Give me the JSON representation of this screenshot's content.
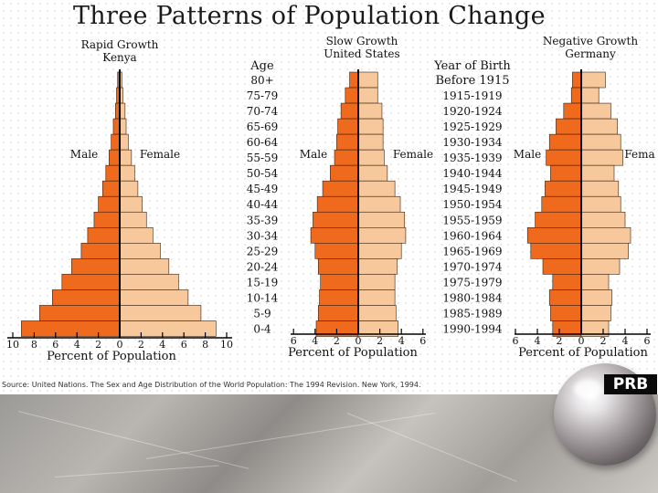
{
  "title": "Three Patterns of Population Change",
  "age_axis_label": "Age",
  "age_groups": [
    "80+",
    "75-79",
    "70-74",
    "65-69",
    "60-64",
    "55-59",
    "50-54",
    "45-49",
    "40-44",
    "35-39",
    "30-34",
    "25-29",
    "20-24",
    "15-19",
    "10-14",
    "5-9",
    "0-4"
  ],
  "birth_year_label_lines": [
    "Year of Birth",
    "Before 1915"
  ],
  "birth_years": [
    "1915-1919",
    "1920-1924",
    "1925-1929",
    "1930-1934",
    "1935-1939",
    "1940-1944",
    "1945-1949",
    "1950-1954",
    "1955-1959",
    "1960-1964",
    "1965-1969",
    "1970-1974",
    "1975-1979",
    "1980-1984",
    "1985-1989",
    "1990-1994"
  ],
  "source": "Source: United Nations. The Sex and Age Distribution of the World Population: The 1994 Revision. New York, 1994.",
  "logo_text": "PRB",
  "colors": {
    "male": "#ef6a1d",
    "female": "#f6c89c",
    "outline": "#3a2010",
    "axis": "#000000"
  },
  "chart_data": [
    {
      "type": "bar",
      "orientation": "horizontal-pyramid",
      "pattern": "Rapid Growth",
      "country": "Kenya",
      "categories": [
        "80+",
        "75-79",
        "70-74",
        "65-69",
        "60-64",
        "55-59",
        "50-54",
        "45-49",
        "40-44",
        "35-39",
        "30-34",
        "25-29",
        "20-24",
        "15-19",
        "10-14",
        "5-9",
        "0-4"
      ],
      "series": [
        {
          "name": "Male",
          "values": [
            0.2,
            0.3,
            0.4,
            0.6,
            0.8,
            1.0,
            1.3,
            1.6,
            2.0,
            2.4,
            3.0,
            3.6,
            4.5,
            5.4,
            6.3,
            7.5,
            9.2
          ]
        },
        {
          "name": "Female",
          "values": [
            0.2,
            0.3,
            0.5,
            0.6,
            0.8,
            1.1,
            1.4,
            1.7,
            2.1,
            2.5,
            3.1,
            3.8,
            4.6,
            5.5,
            6.4,
            7.6,
            9.0
          ]
        }
      ],
      "male_label": "Male",
      "female_label": "Female",
      "xlabel": "Percent of Population",
      "xticks": [
        "10",
        "8",
        "6",
        "4",
        "2",
        "0",
        "2",
        "4",
        "6",
        "8",
        "10"
      ],
      "xlim": [
        -10,
        10
      ]
    },
    {
      "type": "bar",
      "orientation": "horizontal-pyramid",
      "pattern": "Slow Growth",
      "country": "United States",
      "categories": [
        "80+",
        "75-79",
        "70-74",
        "65-69",
        "60-64",
        "55-59",
        "50-54",
        "45-49",
        "40-44",
        "35-39",
        "30-34",
        "25-29",
        "20-24",
        "15-19",
        "10-14",
        "5-9",
        "0-4"
      ],
      "series": [
        {
          "name": "Male",
          "values": [
            0.8,
            1.2,
            1.6,
            1.9,
            2.0,
            2.2,
            2.6,
            3.3,
            3.8,
            4.2,
            4.4,
            4.0,
            3.7,
            3.5,
            3.6,
            3.7,
            3.9
          ]
        },
        {
          "name": "Female",
          "values": [
            1.8,
            1.8,
            2.2,
            2.3,
            2.3,
            2.4,
            2.7,
            3.4,
            3.9,
            4.3,
            4.4,
            4.0,
            3.6,
            3.4,
            3.4,
            3.5,
            3.7
          ]
        }
      ],
      "male_label": "Male",
      "female_label": "Female",
      "xlabel": "Percent of Population",
      "xticks": [
        "6",
        "4",
        "2",
        "0",
        "2",
        "4",
        "6"
      ],
      "xlim": [
        -6,
        6
      ]
    },
    {
      "type": "bar",
      "orientation": "horizontal-pyramid",
      "pattern": "Negative Growth",
      "country": "Germany",
      "categories": [
        "80+",
        "75-79",
        "70-74",
        "65-69",
        "60-64",
        "55-59",
        "50-54",
        "45-49",
        "40-44",
        "35-39",
        "30-34",
        "25-29",
        "20-24",
        "15-19",
        "10-14",
        "5-9",
        "0-4"
      ],
      "series": [
        {
          "name": "Male",
          "values": [
            0.8,
            0.9,
            1.6,
            2.3,
            2.9,
            3.2,
            2.8,
            3.3,
            3.6,
            4.2,
            4.9,
            4.6,
            3.5,
            2.6,
            2.9,
            2.8,
            2.6
          ]
        },
        {
          "name": "Female",
          "values": [
            2.2,
            1.6,
            2.7,
            3.3,
            3.6,
            3.8,
            3.0,
            3.4,
            3.6,
            4.0,
            4.5,
            4.3,
            3.5,
            2.5,
            2.8,
            2.7,
            2.5
          ]
        }
      ],
      "male_label": "Male",
      "female_label": "Fema",
      "xlabel": "Percent of Population",
      "xticks": [
        "6",
        "4",
        "2",
        "0",
        "2",
        "4",
        "6"
      ],
      "xlim": [
        -6,
        6
      ]
    }
  ]
}
